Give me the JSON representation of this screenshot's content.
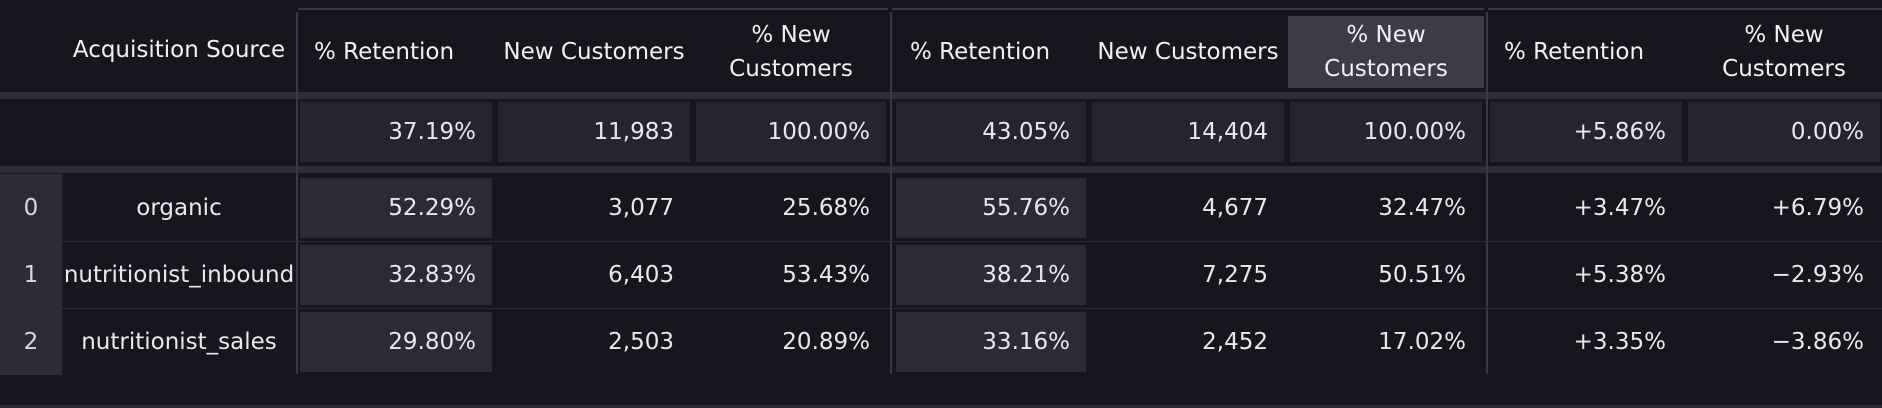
{
  "colors": {
    "background": "#17161f",
    "header_text": "#f1f0f5",
    "total_cell": "#26252f",
    "shaded_cell": "#2b2a35",
    "highlight_header": "#3c3b48"
  },
  "table": {
    "index_header": "",
    "source_header": "Acquisition Source",
    "groups": [
      {
        "columns": [
          {
            "label": "% Retention"
          },
          {
            "label": "New Customers"
          },
          {
            "label": "% New Customers"
          }
        ]
      },
      {
        "columns": [
          {
            "label": "% Retention"
          },
          {
            "label": "New Customers"
          },
          {
            "label": "% New Customers",
            "highlighted": true
          }
        ]
      },
      {
        "columns": [
          {
            "label": "% Retention"
          },
          {
            "label": "% New Customers"
          }
        ]
      }
    ],
    "totals": {
      "index": "",
      "source": "",
      "values": [
        "37.19%",
        "11,983",
        "100.00%",
        "43.05%",
        "14,404",
        "100.00%",
        "+5.86%",
        "0.00%"
      ]
    },
    "rows": [
      {
        "index": "0",
        "source": "organic",
        "values": [
          "52.29%",
          "3,077",
          "25.68%",
          "55.76%",
          "4,677",
          "32.47%",
          "+3.47%",
          "+6.79%"
        ]
      },
      {
        "index": "1",
        "source": "nutritionist_inbound",
        "values": [
          "32.83%",
          "6,403",
          "53.43%",
          "38.21%",
          "7,275",
          "50.51%",
          "+5.38%",
          "−2.93%"
        ]
      },
      {
        "index": "2",
        "source": "nutritionist_sales",
        "values": [
          "29.80%",
          "2,503",
          "20.89%",
          "33.16%",
          "2,452",
          "17.02%",
          "+3.35%",
          "−3.86%"
        ]
      }
    ]
  }
}
